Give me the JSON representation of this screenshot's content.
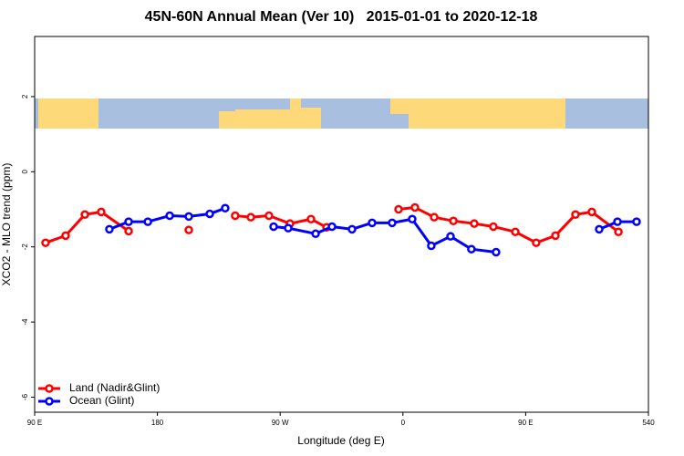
{
  "chart_data": {
    "type": "line",
    "title": "45N-60N Annual Mean (Ver 10)   2015-01-01 to 2020-12-18",
    "x_label": "Longitude (deg E)",
    "y_label": "XCO2 - MLO trend (ppm)",
    "xlim": [
      90,
      540
    ],
    "ylim": [
      -6.4,
      3.6
    ],
    "xticks": [
      {
        "value": 90,
        "label": "90 E"
      },
      180,
      {
        "value": 270,
        "label": "90 W"
      },
      {
        "value": 360,
        "label": "0"
      },
      {
        "value": 450,
        "label": "90 E"
      },
      540
    ],
    "yticks": [
      2,
      0,
      -2,
      -4,
      -6
    ],
    "legend": "bottom-left",
    "series": [
      {
        "name": "Land (Nadir&Glint)",
        "color": "#ff0000",
        "x": [
          98,
          112.7,
          126.8,
          138.8,
          158.9,
          null,
          203,
          null,
          237,
          248.5,
          261.8,
          277.2,
          292.6,
          304,
          null,
          356.8,
          368.8,
          382.9,
          397,
          412.3,
          426.3,
          442.4,
          457.7,
          471.8,
          486.5,
          498.5,
          518
        ],
        "values": [
          -1.89,
          -1.7,
          -1.14,
          -1.07,
          -1.58,
          null,
          -1.55,
          null,
          -1.17,
          -1.21,
          -1.17,
          -1.38,
          -1.26,
          -1.48,
          null,
          -1.0,
          -0.95,
          -1.21,
          -1.31,
          -1.38,
          -1.46,
          -1.6,
          -1.89,
          -1.7,
          -1.14,
          -1.07,
          -1.6
        ]
      },
      {
        "name": "Ocean (Glint)",
        "color": "#0000ff",
        "x": [
          144.8,
          158.9,
          173,
          189,
          203,
          218.4,
          229.7,
          null,
          265.2,
          275.9,
          296,
          308,
          322.7,
          337.4,
          352.1,
          366.8,
          380.8,
          394.9,
          410.2,
          428.3,
          null,
          503.9,
          517.3,
          531.3
        ],
        "values": [
          -1.53,
          -1.33,
          -1.33,
          -1.17,
          -1.19,
          -1.12,
          -0.97,
          null,
          -1.46,
          -1.5,
          -1.65,
          -1.46,
          -1.53,
          -1.36,
          -1.36,
          -1.26,
          -1.97,
          -1.72,
          -2.06,
          -2.14,
          null,
          -1.53,
          -1.33,
          -1.33
        ]
      }
    ]
  }
}
